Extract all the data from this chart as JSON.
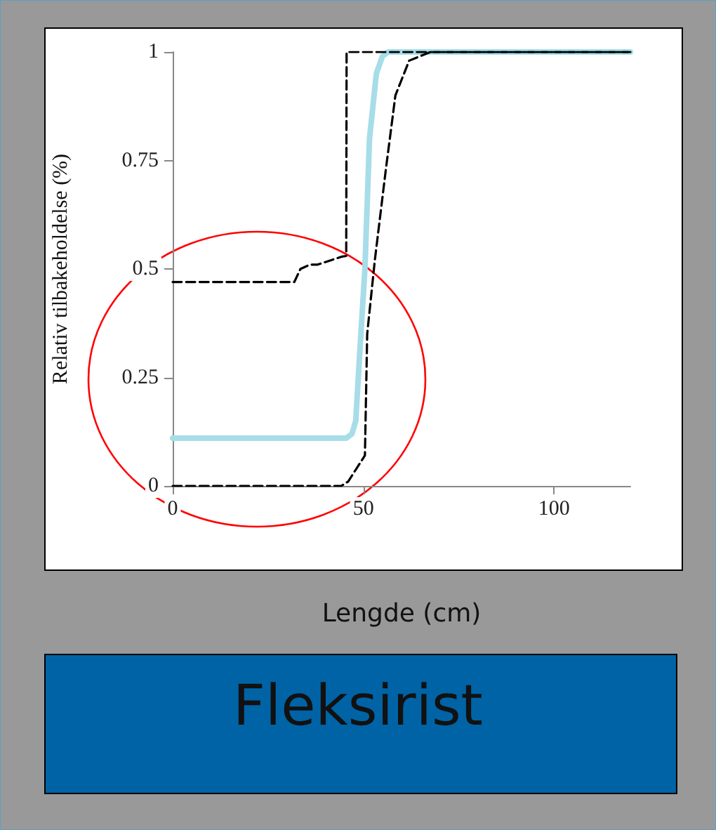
{
  "chart_data": {
    "type": "line",
    "title": "Fleksirist",
    "xlabel": "Lengde (cm)",
    "ylabel": "Relativ tilbakeholdelse (%)",
    "xlim": [
      0,
      120
    ],
    "xticks": [
      0,
      50,
      100
    ],
    "ylim": [
      0,
      1
    ],
    "yticks": [
      0,
      0.25,
      0.5,
      0.75,
      1
    ],
    "grid": false,
    "marker": "none",
    "series": [
      {
        "color": "#a6dde8",
        "line_style": "solid",
        "x": [
          0,
          45.5,
          47,
          48,
          49,
          50.4,
          51.6,
          53.4,
          55,
          56.5,
          120
        ],
        "values": [
          0.11,
          0.11,
          0.12,
          0.15,
          0.3,
          0.5,
          0.8,
          0.95,
          0.99,
          1,
          1
        ]
      },
      {
        "color": "#000000",
        "line_style": "dashed",
        "x": [
          0,
          31.9,
          33.5,
          36,
          38,
          44.2,
          45.5,
          45.6,
          120
        ],
        "values": [
          0.47,
          0.47,
          0.5,
          0.51,
          0.51,
          0.528,
          0.53,
          1,
          1
        ]
      },
      {
        "color": "#000000",
        "line_style": "dashed",
        "x": [
          0,
          44.2,
          46,
          47.9,
          50.4,
          51,
          53,
          55.9,
          58.4,
          62,
          67.6,
          120
        ],
        "values": [
          0,
          0,
          0.01,
          0.036,
          0.07,
          0.35,
          0.52,
          0.73,
          0.9,
          0.98,
          1,
          1
        ]
      }
    ]
  }
}
